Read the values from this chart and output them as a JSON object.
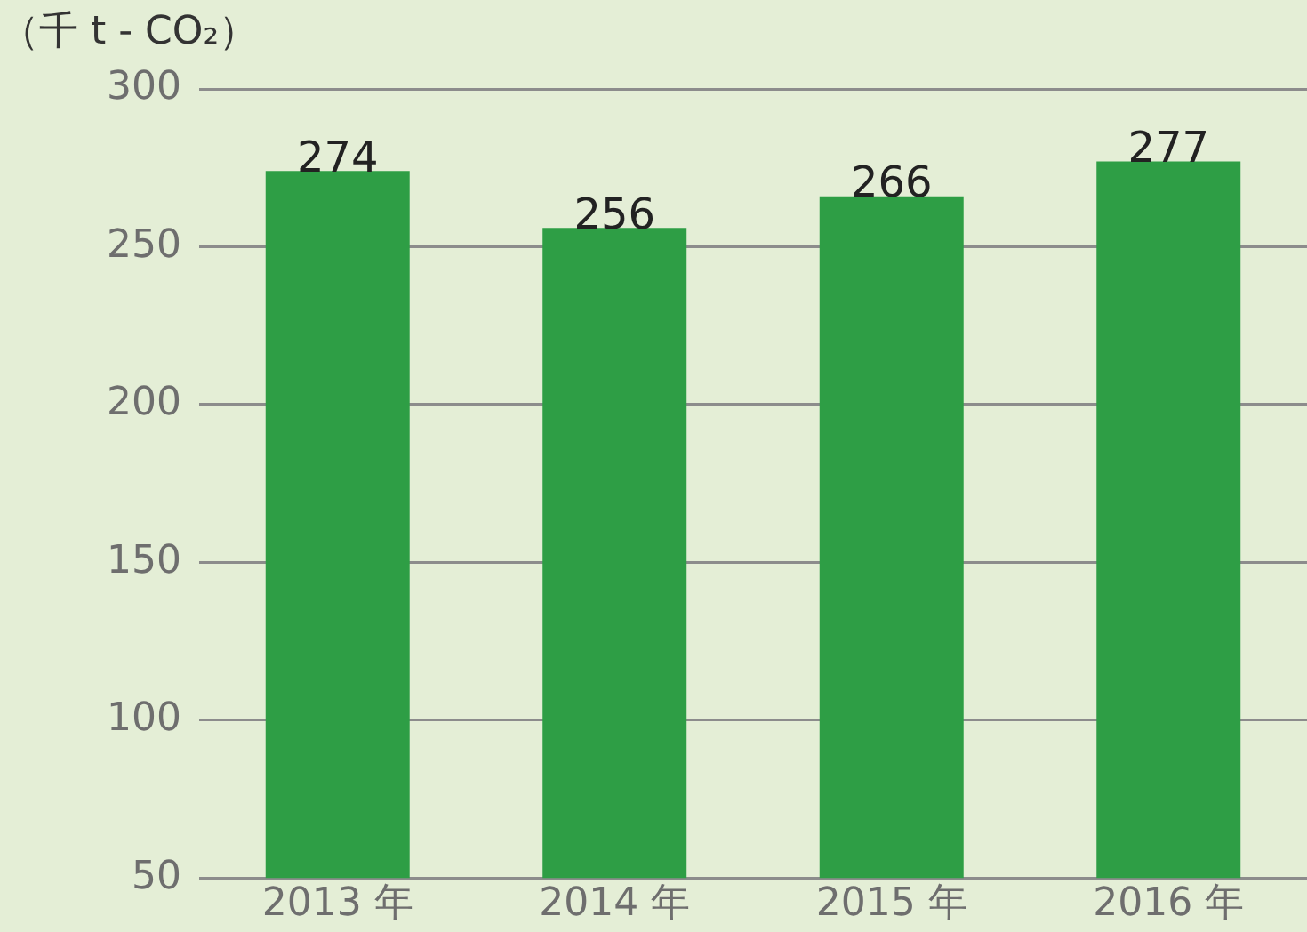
{
  "chart_data": {
    "type": "bar",
    "ylabel": "（千 t - CO₂）",
    "categories": [
      "2013 年",
      "2014 年",
      "2015 年",
      "2016 年"
    ],
    "values": [
      274,
      256,
      266,
      277
    ],
    "color": "#2e9e45",
    "ylim": [
      50,
      300
    ],
    "yticks": [
      50,
      100,
      150,
      200,
      250,
      300
    ],
    "grid": "y",
    "data_labels": true,
    "legend": false
  }
}
